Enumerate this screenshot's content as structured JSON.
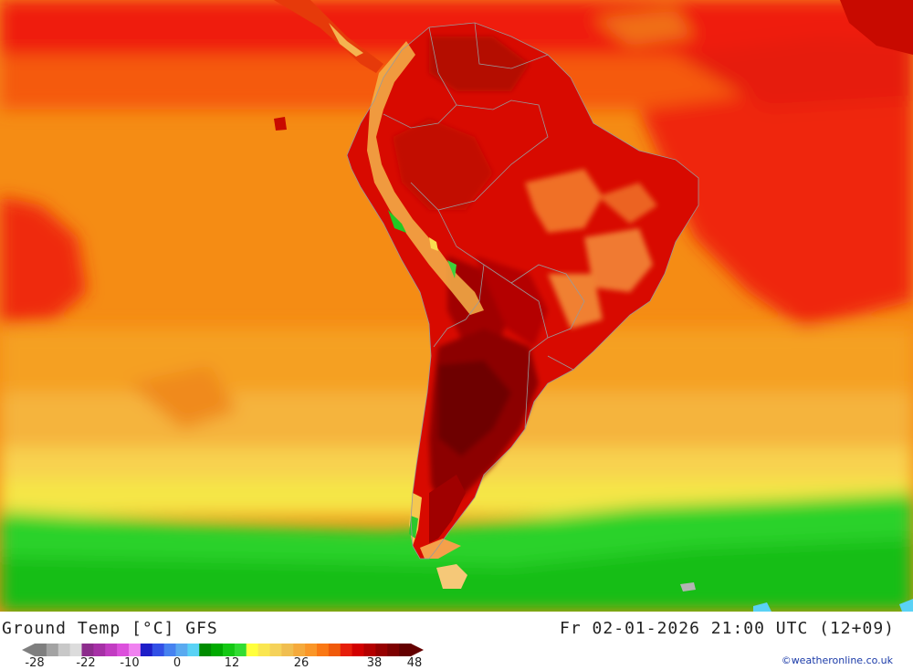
{
  "map": {
    "title": "Ground Temp [°C] GFS",
    "datetime": "Fr 02-01-2026 21:00 UTC (12+09)",
    "credit": "©weatheronline.co.uk",
    "region": "South America",
    "legend": {
      "tick_labels": [
        "-28",
        "-22",
        "-10",
        "0",
        "12",
        "26",
        "38",
        "48"
      ],
      "colors": [
        "#7f7f7f",
        "#a3a3a3",
        "#c8c8c8",
        "#dcdcdc",
        "#8c2c8c",
        "#a630a6",
        "#c23cc2",
        "#dc50dc",
        "#f082f0",
        "#1e1ec8",
        "#3250e6",
        "#4682f0",
        "#5aaaf0",
        "#5ad2f5",
        "#008c00",
        "#00aa00",
        "#14c814",
        "#32dc32",
        "#ffff3c",
        "#fae650",
        "#f5d25a",
        "#f0be50",
        "#f5aa3c",
        "#fa9628",
        "#fa7814",
        "#f05a0a",
        "#e61e0a",
        "#d20000",
        "#b40000",
        "#960000",
        "#7d0000",
        "#640000"
      ]
    }
  }
}
